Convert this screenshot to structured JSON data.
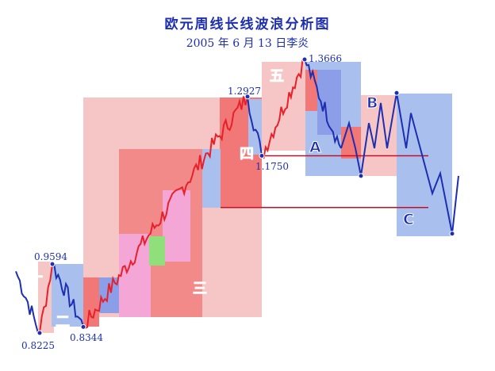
{
  "title": "欧元周线长线波浪分析图",
  "subtitle": "2005 年 6 月 13 日李炎",
  "chart_data": {
    "type": "line",
    "title": "欧元周线长线波浪分析图",
    "subtitle": "2005 年 6 月 13 日李炎",
    "grid": false,
    "colors": {
      "up": "#e8202a",
      "down": "#1d2fb0",
      "projection": "#1d2fb0",
      "support_line": "#c0102a"
    },
    "pivots": [
      {
        "wave": "一",
        "price_label": "0.8225",
        "value": 0.8225,
        "type": "low"
      },
      {
        "wave": "一",
        "price_label": "0.9594",
        "value": 0.9594,
        "type": "high"
      },
      {
        "wave": "二",
        "price_label": "0.8344",
        "value": 0.8344,
        "type": "low"
      },
      {
        "wave": "三",
        "price_label": "1.2927",
        "value": 1.2927,
        "type": "high"
      },
      {
        "wave": "四",
        "price_label": "1.1750",
        "value": 1.175,
        "type": "low"
      },
      {
        "wave": "五",
        "price_label": "1.3666",
        "value": 1.3666,
        "type": "high"
      }
    ],
    "wave_labels": [
      "一",
      "二",
      "三",
      "四",
      "五",
      "A",
      "B",
      "C"
    ],
    "projection": [
      {
        "wave": "A",
        "value": 1.135
      },
      {
        "wave": "B",
        "value": 1.3
      },
      {
        "wave": "C",
        "value": 1.02
      }
    ],
    "support_lines": [
      1.175,
      1.072
    ]
  }
}
